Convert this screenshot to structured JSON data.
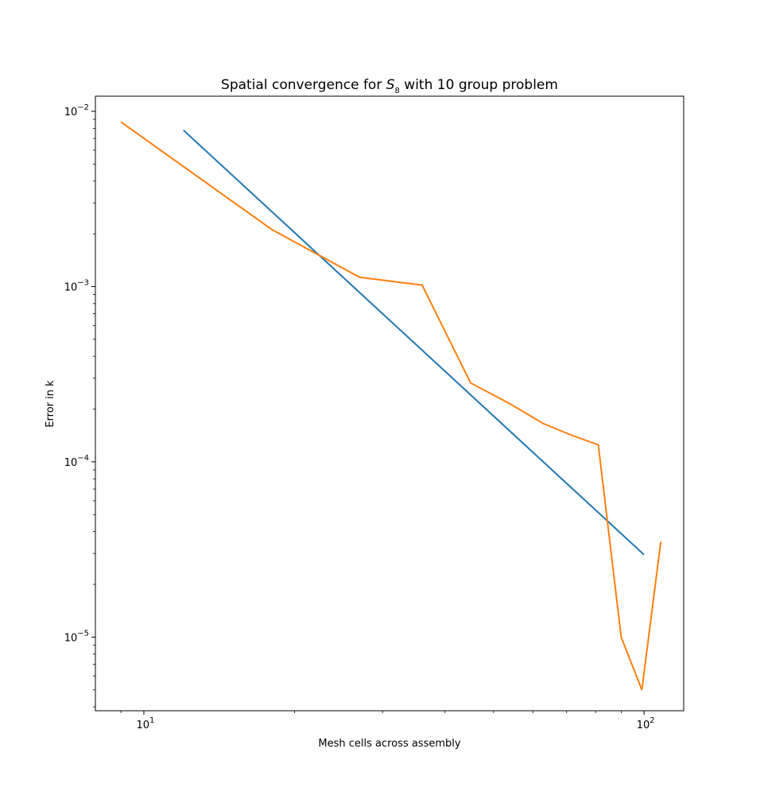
{
  "chart_data": {
    "type": "line",
    "title_prefix": "Spatial convergence for ",
    "title_symbol": "S",
    "title_subscript": "8",
    "title_suffix": " with 10 group problem",
    "xlabel": "Mesh cells across assembly",
    "ylabel": "Error in k",
    "xscale": "log",
    "yscale": "log",
    "xlim": [
      8.0,
      120.0
    ],
    "ylim": [
      3.8e-06,
      0.0122
    ],
    "grid": false,
    "x_ticks": [
      {
        "value": 10,
        "base": "10",
        "exp": "1"
      },
      {
        "value": 100,
        "base": "10",
        "exp": "2"
      }
    ],
    "y_ticks": [
      {
        "value": 1e-05,
        "base": "10",
        "exp": "−5"
      },
      {
        "value": 0.0001,
        "base": "10",
        "exp": "−4"
      },
      {
        "value": 0.001,
        "base": "10",
        "exp": "−3"
      },
      {
        "value": 0.01,
        "base": "10",
        "exp": "−2"
      }
    ],
    "series": [
      {
        "color": "#1f77b4",
        "x": [
          12,
          100
        ],
        "y": [
          0.0078,
          2.95e-05
        ]
      },
      {
        "color": "#ff7f0e",
        "x": [
          9,
          18,
          27,
          36,
          45,
          54,
          63,
          72,
          81,
          90,
          99,
          108
        ],
        "y": [
          0.0087,
          0.00212,
          0.00113,
          0.00102,
          0.000282,
          0.000214,
          0.000165,
          0.000141,
          0.000125,
          1e-05,
          5e-06,
          3.5e-05
        ]
      }
    ]
  }
}
